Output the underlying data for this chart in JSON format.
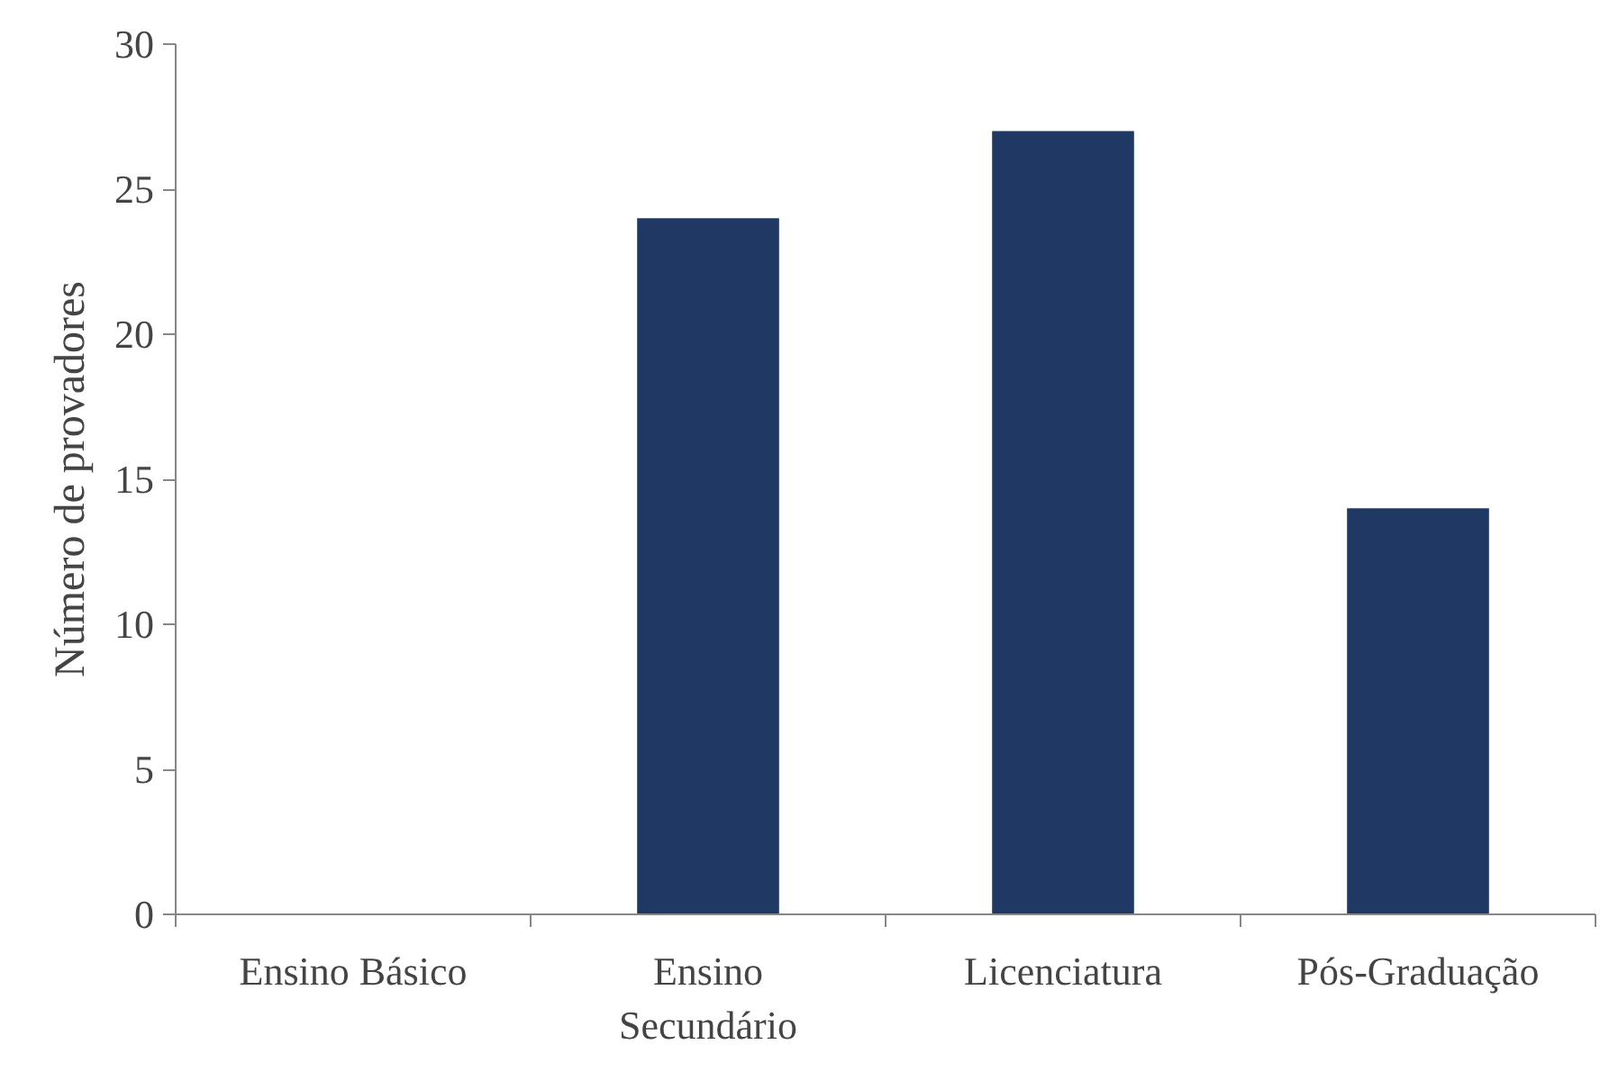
{
  "chart_data": {
    "type": "bar",
    "ylabel": "Número de provadores",
    "categories": [
      "Ensino Básico",
      "Ensino Secundário",
      "Licenciatura",
      "Pós-Graduação"
    ],
    "values": [
      0,
      24,
      27,
      14
    ],
    "color": "#1f3864",
    "ylim": [
      0,
      30
    ],
    "yticks": [
      0,
      5,
      10,
      15,
      20,
      25,
      30
    ],
    "grid": false
  }
}
